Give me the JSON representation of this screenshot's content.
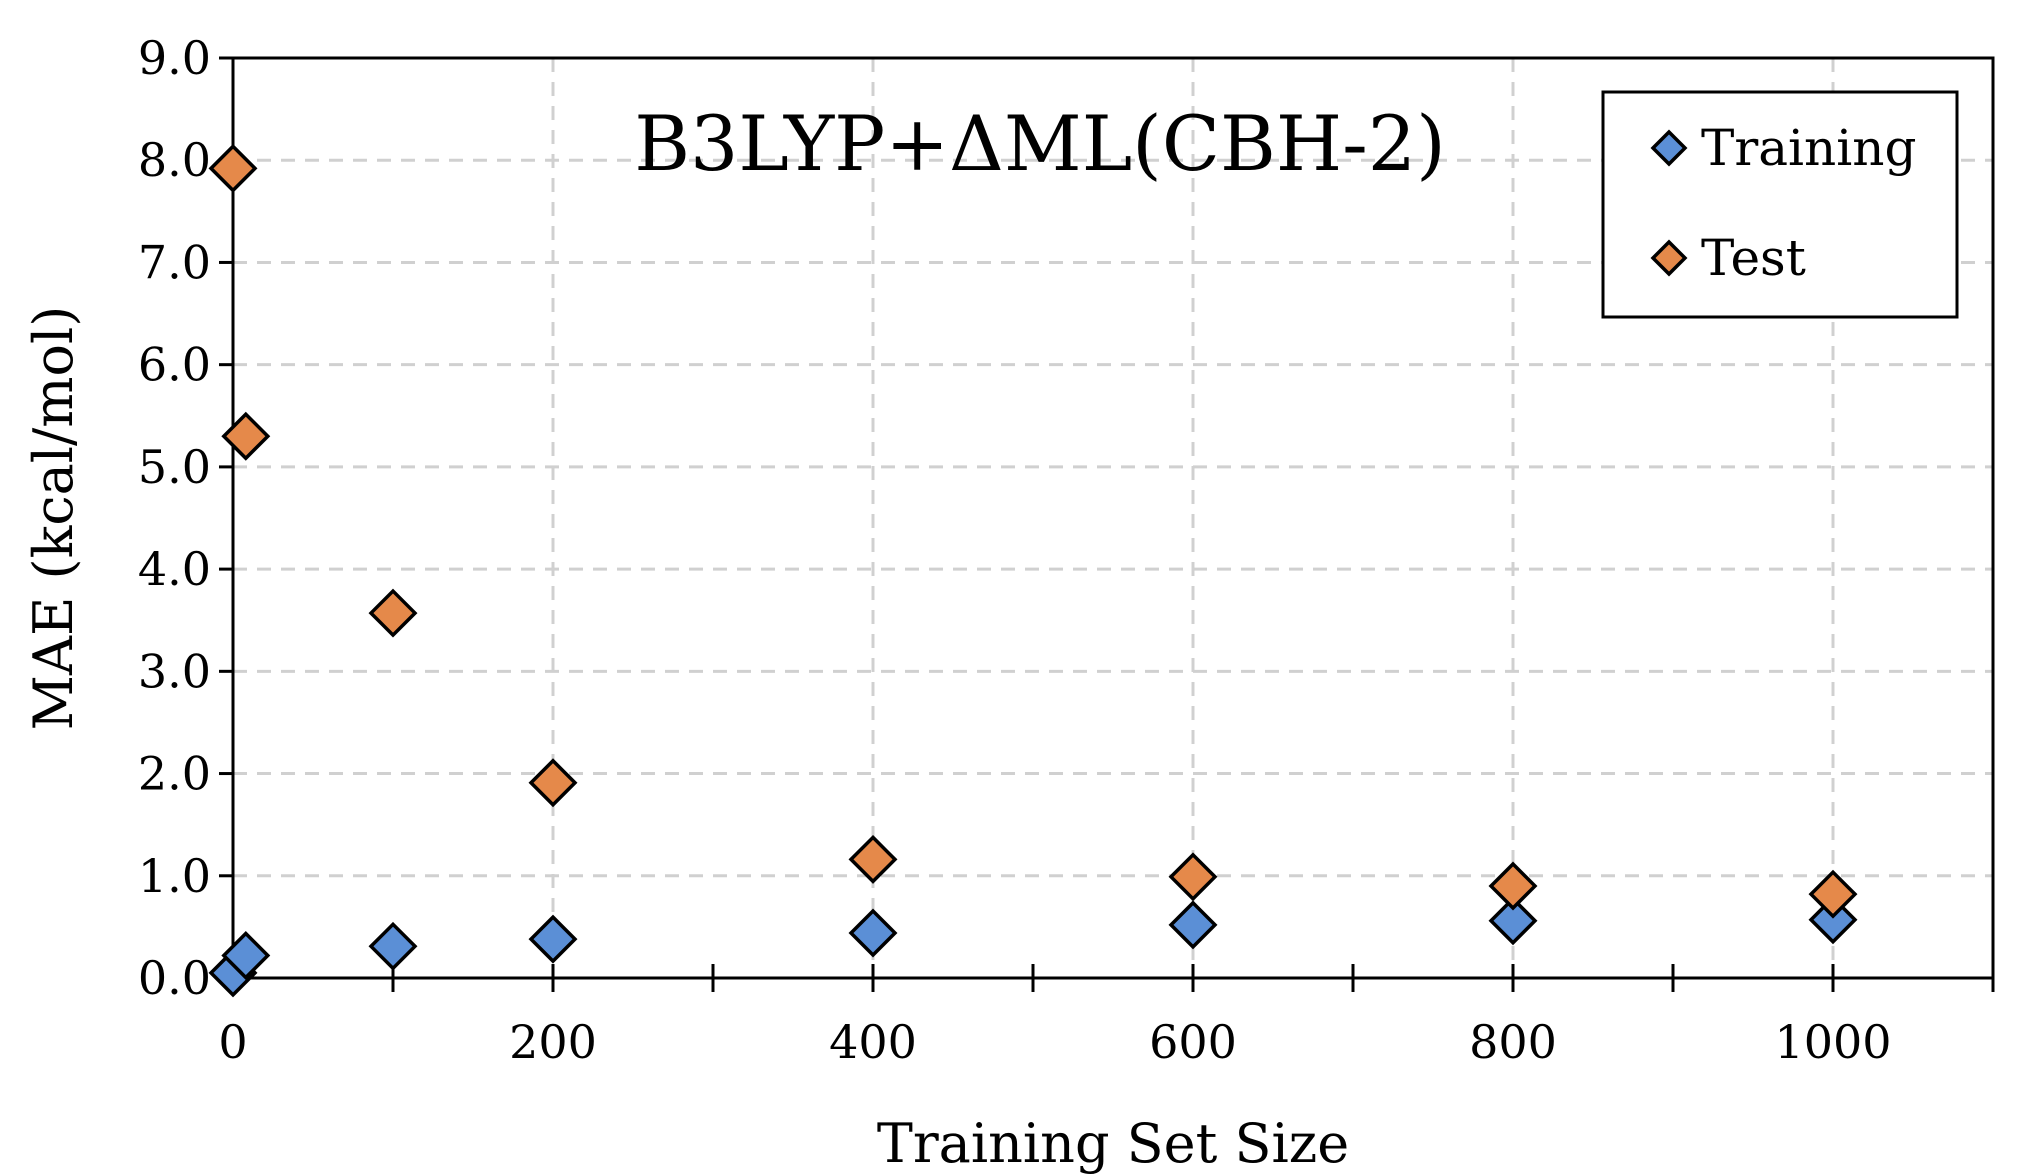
{
  "chart_data": {
    "type": "scatter",
    "title": "B3LYP+ΔML(CBH-2)",
    "xlabel": "Training Set Size",
    "ylabel": "MAE (kcal/mol)",
    "xlim": [
      0,
      1100
    ],
    "ylim": [
      0,
      9
    ],
    "x_ticks": [
      0,
      100,
      200,
      300,
      400,
      500,
      600,
      700,
      800,
      900,
      1000,
      1100
    ],
    "x_tick_labels": [
      "0",
      "200",
      "400",
      "600",
      "800",
      "1000"
    ],
    "x_tick_label_values": [
      0,
      200,
      400,
      600,
      800,
      1000
    ],
    "y_ticks": [
      0,
      1,
      2,
      3,
      4,
      5,
      6,
      7,
      8,
      9
    ],
    "y_tick_labels": [
      "0.0",
      "1.0",
      "2.0",
      "3.0",
      "4.0",
      "5.0",
      "6.0",
      "7.0",
      "8.0",
      "9.0"
    ],
    "grid": true,
    "legend_position": "top-right",
    "series": [
      {
        "name": "Training",
        "color": "#5b8fd6",
        "marker": "diamond",
        "x": [
          0,
          8,
          100,
          200,
          400,
          600,
          800,
          1000
        ],
        "y": [
          0.05,
          0.22,
          0.31,
          0.38,
          0.44,
          0.52,
          0.56,
          0.57
        ]
      },
      {
        "name": "Test",
        "color": "#e5894a",
        "marker": "diamond",
        "x": [
          0,
          8,
          100,
          200,
          400,
          600,
          800,
          1000
        ],
        "y": [
          7.92,
          5.3,
          3.57,
          1.91,
          1.16,
          0.99,
          0.9,
          0.82
        ]
      }
    ]
  }
}
